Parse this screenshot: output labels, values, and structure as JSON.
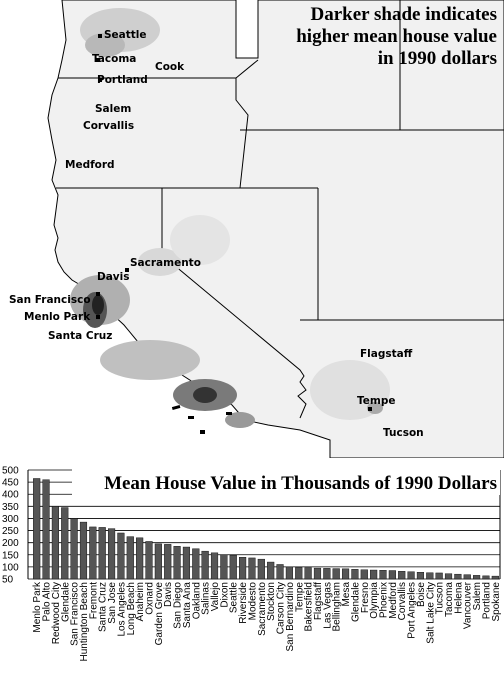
{
  "map": {
    "legend_lines": [
      "Darker shade indicates",
      "higher mean house value",
      "in 1990 dollars"
    ],
    "cities": [
      {
        "name": "Seattle"
      },
      {
        "name": "Tacoma"
      },
      {
        "name": "Cook"
      },
      {
        "name": "Portland"
      },
      {
        "name": "Salem"
      },
      {
        "name": "Corvallis"
      },
      {
        "name": "Medford"
      },
      {
        "name": "Sacramento"
      },
      {
        "name": "Davis"
      },
      {
        "name": "San Francisco"
      },
      {
        "name": "Menlo Park"
      },
      {
        "name": "Santa Cruz"
      },
      {
        "name": "Flagstaff"
      },
      {
        "name": "Tempe"
      },
      {
        "name": "Tucson"
      }
    ],
    "colors": {
      "land": "#f2f2f2",
      "water": "#ffffff",
      "border": "#000000",
      "dark": "#222222"
    }
  },
  "chart_data": {
    "type": "bar",
    "title": "Mean House Value in Thousands of 1990 Dollars",
    "ylim": [
      50,
      500
    ],
    "yticks": [
      50,
      100,
      150,
      200,
      250,
      300,
      350,
      400,
      450,
      500
    ],
    "grid": true,
    "bar_color": "#555555",
    "categories": [
      "Menlo Park",
      "Palo Alto",
      "Redwood City",
      "Glendale",
      "San Francisco",
      "Huntington Beach",
      "Fremont",
      "Santa Cruz",
      "San Jose",
      "Los Angeles",
      "Long Beach",
      "Anaheim",
      "Oxnard",
      "Garden Grove",
      "Davis",
      "San Diego",
      "Santa Ana",
      "Oakland",
      "Salinas",
      "Vallejo",
      "Dixon",
      "Seattle",
      "Riverside",
      "Modesto",
      "Sacramento",
      "Stockton",
      "Carson City",
      "San Bernardino",
      "Tempe",
      "Bakersfield",
      "Flagstaff",
      "Las Vegas",
      "Bellingham",
      "Mesa",
      "Glendale",
      "Fresno",
      "Olympia",
      "Phoenix",
      "Medford",
      "Corvallis",
      "Port Angeles",
      "Boise",
      "Salt Lake City",
      "Tucson",
      "Tacoma",
      "Helena",
      "Vancouver",
      "Salem",
      "Portland",
      "Spokane"
    ],
    "values": [
      465,
      460,
      350,
      345,
      300,
      285,
      265,
      263,
      258,
      240,
      225,
      220,
      205,
      195,
      193,
      185,
      182,
      175,
      165,
      158,
      150,
      148,
      140,
      137,
      132,
      120,
      110,
      100,
      98,
      97,
      95,
      94,
      93,
      92,
      90,
      88,
      87,
      86,
      85,
      82,
      80,
      78,
      76,
      75,
      72,
      70,
      68,
      65,
      63,
      62
    ]
  }
}
